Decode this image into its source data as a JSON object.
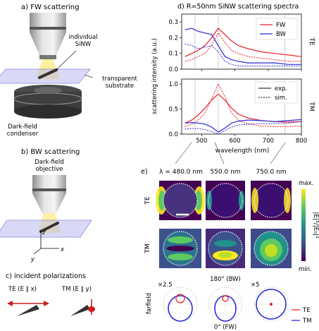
{
  "panel_a": {
    "title": "a) FW scattering",
    "nanowire_label": "individual\nSiNW",
    "substrate_label": "transparent\nsubstrate",
    "condenser_label": "Dark-field\ncondenser"
  },
  "panel_b": {
    "title": "b) BW scattering",
    "objective_label": "Dark-field\nobjective",
    "axis_z": "z",
    "axis_y": "y",
    "axis_x": "x"
  },
  "panel_c": {
    "title": "c) incident polarizations",
    "te_label": "TE (E ∥ x)",
    "tm_label": "TM (E ∥ y)"
  },
  "panel_d": {
    "title": "d) R=50nm SiNW scattering spectra",
    "ylabel": "scattering intensity (a.u.)",
    "xlabel": "wavelength (nm)",
    "te_tag": "TE",
    "tm_tag": "TM",
    "legend_top": [
      "FW",
      "BW"
    ],
    "legend_bottom": [
      "exp.",
      "sim."
    ],
    "te_yticks": [
      "0.0",
      "0.1",
      "0.2",
      "0.3"
    ],
    "tm_yticks": [
      "0.0",
      "0.5",
      "1.0"
    ],
    "xticks": [
      "500",
      "600",
      "700",
      "800"
    ],
    "colors": {
      "fw": "#e8202a",
      "bw": "#2b2bd6"
    }
  },
  "panel_e": {
    "title": "e)",
    "wavelength_labels": [
      "λ = 480.0 nm",
      "550.0 nm",
      "750.0 nm"
    ],
    "row_te": "TE",
    "row_tm": "TM",
    "colorbar_max": "max.",
    "colorbar_min": "min.",
    "colorbar_label": "|E|²/|E₀|²",
    "farfield_label": "farfield",
    "polar_scale_left": "×2.5",
    "polar_scale_right": "×5",
    "bw_label": "180° (BW)",
    "fw_label": "0° (FW)",
    "legend": [
      "TE",
      "TM"
    ]
  },
  "chart_data": [
    {
      "type": "line",
      "title": "d) R=50nm SiNW scattering spectra",
      "xlabel": "wavelength (nm)",
      "ylabel": "scattering intensity (a.u.)",
      "panel": "TE",
      "xlim": [
        440,
        800
      ],
      "ylim": [
        0,
        0.35
      ],
      "reference_lines_x": [
        480,
        550,
        750
      ],
      "series": [
        {
          "name": "FW exp.",
          "x": [
            450,
            470,
            490,
            510,
            530,
            550,
            570,
            590,
            610,
            640,
            680,
            720,
            760,
            800
          ],
          "y": [
            0.08,
            0.1,
            0.12,
            0.15,
            0.2,
            0.26,
            0.22,
            0.18,
            0.15,
            0.13,
            0.11,
            0.1,
            0.09,
            0.08
          ]
        },
        {
          "name": "FW sim.",
          "x": [
            450,
            470,
            490,
            510,
            530,
            550,
            570,
            590,
            610,
            640,
            680,
            720,
            760,
            800
          ],
          "y": [
            0.05,
            0.06,
            0.08,
            0.1,
            0.15,
            0.23,
            0.17,
            0.12,
            0.1,
            0.08,
            0.07,
            0.06,
            0.05,
            0.05
          ]
        },
        {
          "name": "BW exp.",
          "x": [
            450,
            470,
            490,
            510,
            530,
            550,
            570,
            590,
            610,
            640,
            680,
            720,
            760,
            800
          ],
          "y": [
            0.25,
            0.26,
            0.24,
            0.23,
            0.22,
            0.15,
            0.08,
            0.06,
            0.05,
            0.04,
            0.04,
            0.04,
            0.03,
            0.03
          ]
        },
        {
          "name": "BW sim.",
          "x": [
            450,
            470,
            490,
            510,
            530,
            550,
            570,
            590,
            610,
            640,
            680,
            720,
            760,
            800
          ],
          "y": [
            0.16,
            0.15,
            0.13,
            0.14,
            0.15,
            0.11,
            0.05,
            0.03,
            0.02,
            0.02,
            0.02,
            0.02,
            0.02,
            0.02
          ]
        }
      ]
    },
    {
      "type": "line",
      "panel": "TM",
      "xlabel": "wavelength (nm)",
      "ylabel": "scattering intensity (a.u.)",
      "xlim": [
        440,
        800
      ],
      "ylim": [
        0,
        1.1
      ],
      "reference_lines_x": [
        480,
        550,
        750
      ],
      "series": [
        {
          "name": "FW exp.",
          "x": [
            450,
            470,
            490,
            510,
            530,
            550,
            570,
            590,
            610,
            640,
            680,
            720,
            760,
            800
          ],
          "y": [
            0.22,
            0.28,
            0.38,
            0.52,
            0.68,
            0.8,
            0.68,
            0.52,
            0.4,
            0.32,
            0.27,
            0.25,
            0.24,
            0.25
          ]
        },
        {
          "name": "FW sim.",
          "x": [
            450,
            470,
            490,
            510,
            530,
            550,
            570,
            590,
            610,
            640,
            680,
            720,
            760,
            800
          ],
          "y": [
            0.15,
            0.2,
            0.28,
            0.42,
            0.7,
            1.0,
            0.75,
            0.42,
            0.28,
            0.2,
            0.16,
            0.15,
            0.15,
            0.16
          ]
        },
        {
          "name": "BW exp.",
          "x": [
            450,
            470,
            490,
            510,
            530,
            550,
            570,
            590,
            610,
            640,
            680,
            720,
            760,
            800
          ],
          "y": [
            0.22,
            0.23,
            0.22,
            0.2,
            0.14,
            0.04,
            0.12,
            0.22,
            0.26,
            0.28,
            0.27,
            0.25,
            0.27,
            0.29
          ]
        },
        {
          "name": "BW sim.",
          "x": [
            450,
            470,
            490,
            510,
            530,
            550,
            570,
            590,
            610,
            640,
            680,
            720,
            760,
            800
          ],
          "y": [
            0.1,
            0.11,
            0.11,
            0.09,
            0.05,
            0.0,
            0.07,
            0.14,
            0.18,
            0.2,
            0.21,
            0.21,
            0.22,
            0.25
          ]
        }
      ]
    }
  ]
}
